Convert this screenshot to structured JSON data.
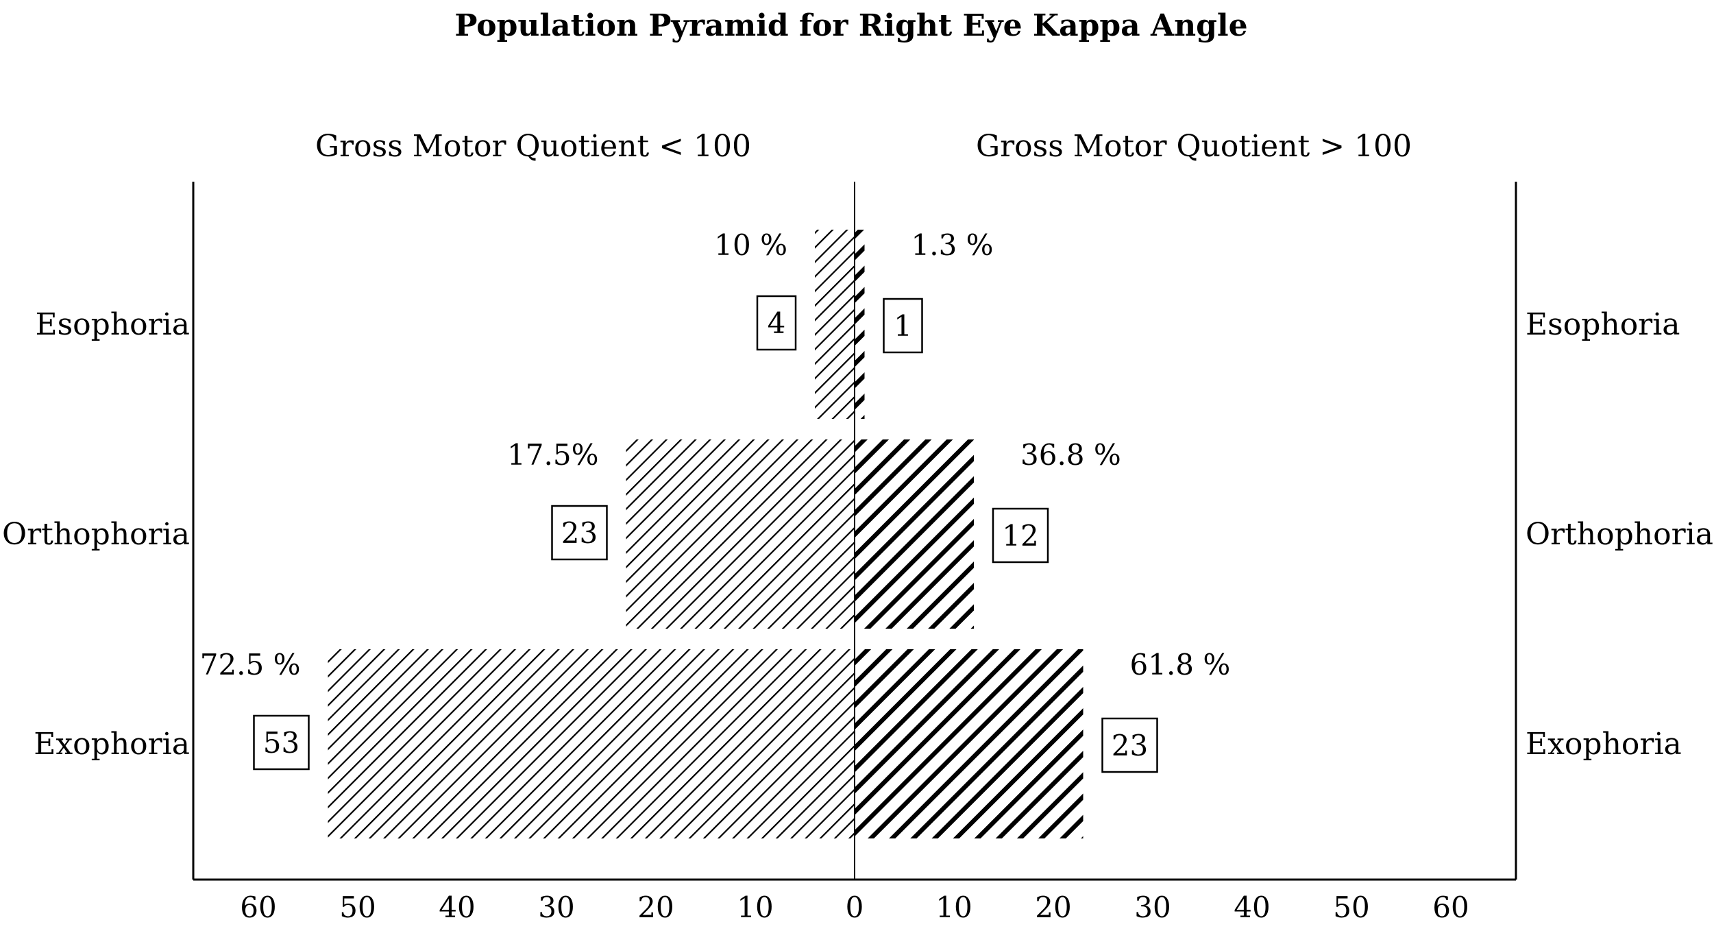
{
  "chart_data": {
    "type": "bar",
    "orientation": "horizontal",
    "layout": "population-pyramid",
    "title": "Population Pyramid for Right Eye Kappa Angle",
    "categories": [
      "Esophoria",
      "Orthophoria",
      "Exophoria"
    ],
    "series": [
      {
        "name": "Gross Motor Quotient < 100",
        "side": "left",
        "values": [
          4,
          23,
          53
        ],
        "percent_labels": [
          "10 %",
          "17.5%",
          "72.5 %"
        ],
        "count_labels": [
          "4",
          "23",
          "53"
        ],
        "fill": "light diagonal hatch"
      },
      {
        "name": "Gross Motor Quotient > 100",
        "side": "right",
        "values": [
          1,
          12,
          23
        ],
        "percent_labels": [
          "1.3 %",
          "36.8 %",
          "61.8 %"
        ],
        "count_labels": [
          "1",
          "12",
          "23"
        ],
        "fill": "heavy diagonal hatch"
      }
    ],
    "xlim": [
      -60,
      60
    ],
    "x_ticks": [
      60,
      50,
      40,
      30,
      20,
      10,
      0,
      10,
      20,
      30,
      40,
      50,
      60
    ],
    "x_tick_values": [
      -60,
      -50,
      -40,
      -30,
      -20,
      -10,
      0,
      10,
      20,
      30,
      40,
      50,
      60
    ],
    "grid": false,
    "legend": "none",
    "colors": {
      "foreground": "#000000",
      "background": "#ffffff"
    }
  }
}
